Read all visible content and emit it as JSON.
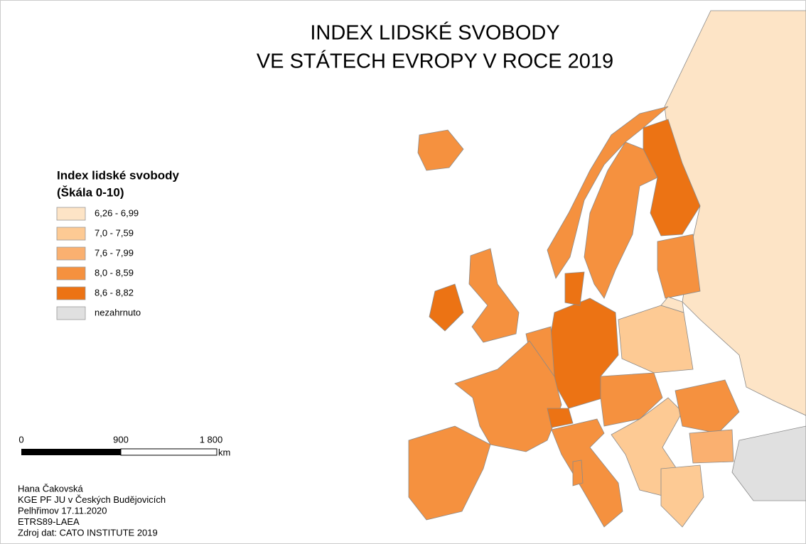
{
  "title": [
    "INDEX LIDSKÉ SVOBODY",
    "VE STÁTECH EVROPY V ROCE 2019"
  ],
  "legend": {
    "title": [
      "Index lidské svobody",
      "(Škála 0-10)"
    ],
    "items": [
      {
        "label": "6,26 - 6,99",
        "color": "#fde4c6"
      },
      {
        "label": "7,0 - 7,59",
        "color": "#fdca94"
      },
      {
        "label": "7,6 - 7,99",
        "color": "#fab070"
      },
      {
        "label": "8,0 - 8,59",
        "color": "#f5913f"
      },
      {
        "label": "8,6 - 8,82",
        "color": "#ec7314"
      },
      {
        "label": "nezahrnuto",
        "color": "#e0e0e0"
      }
    ]
  },
  "scale": {
    "labels": [
      "0",
      "900",
      "1 800"
    ],
    "unit": "km"
  },
  "credits": [
    "Hana Čakovská",
    "KGE PF JU v Českých Budějovicích",
    "Pelhřimov 17.11.2020",
    "ETRS89-LAEA",
    "Zdroj dat: CATO INSTITUTE 2019"
  ]
}
